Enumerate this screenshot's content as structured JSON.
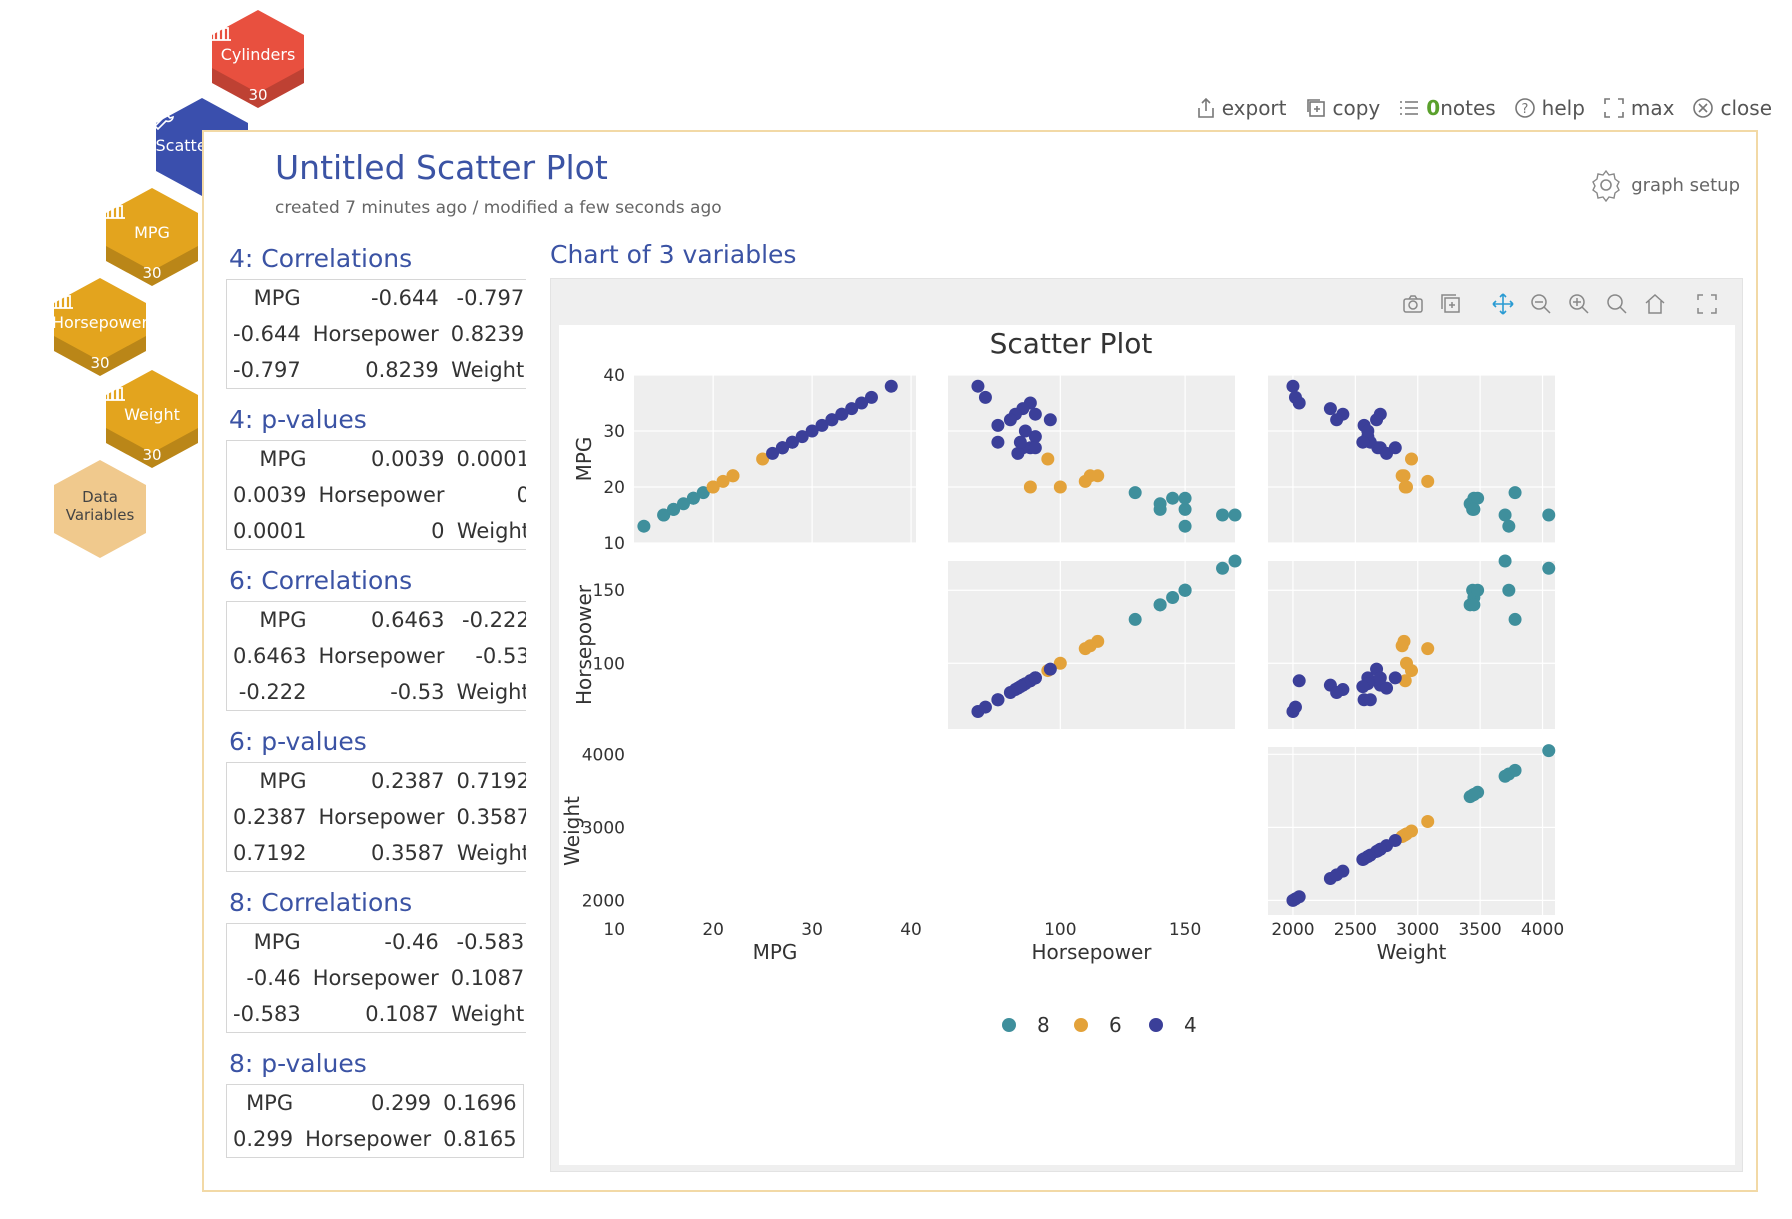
{
  "nav": {
    "hexes": [
      {
        "key": "cylinders",
        "label": "Cylinders",
        "count": "30",
        "color": "#e8503f",
        "icon": "bar-chart-icon"
      },
      {
        "key": "scatter",
        "label": "Scatter Plot",
        "count": "",
        "color": "#3a4fad",
        "icon": "wrench-icon"
      },
      {
        "key": "mpg",
        "label": "MPG",
        "count": "30",
        "color": "#e3a41e",
        "icon": "bar-chart-icon"
      },
      {
        "key": "horsepower",
        "label": "Horsepower",
        "count": "30",
        "color": "#e3a41e",
        "icon": "bar-chart-icon"
      },
      {
        "key": "weight",
        "label": "Weight",
        "count": "30",
        "color": "#e3a41e",
        "icon": "bar-chart-icon"
      },
      {
        "key": "data",
        "label": "Data\nVariables",
        "count": "",
        "color": "#f0c98d",
        "icon": ""
      }
    ]
  },
  "toolbar": {
    "export": "export",
    "copy": "copy",
    "notes_count": "0",
    "notes": "notes",
    "help": "help",
    "max": "max",
    "close": "close"
  },
  "header": {
    "title": "Untitled Scatter Plot",
    "subtitle": "created 7 minutes ago / modified a few seconds ago",
    "graph_setup": "graph setup"
  },
  "stats": [
    {
      "title": "4: Correlations",
      "rows": [
        [
          "MPG",
          "-0.644",
          "-0.797"
        ],
        [
          "-0.644",
          "Horsepower",
          "0.8239"
        ],
        [
          "-0.797",
          "0.8239",
          "Weight"
        ]
      ]
    },
    {
      "title": "4: p-values",
      "rows": [
        [
          "MPG",
          "0.0039",
          "0.0001"
        ],
        [
          "0.0039",
          "Horsepower",
          "0"
        ],
        [
          "0.0001",
          "0",
          "Weight"
        ]
      ]
    },
    {
      "title": "6: Correlations",
      "rows": [
        [
          "MPG",
          "0.6463",
          "-0.222"
        ],
        [
          "0.6463",
          "Horsepower",
          "-0.53"
        ],
        [
          "-0.222",
          "-0.53",
          "Weight"
        ]
      ]
    },
    {
      "title": "6: p-values",
      "rows": [
        [
          "MPG",
          "0.2387",
          "0.7192"
        ],
        [
          "0.2387",
          "Horsepower",
          "0.3587"
        ],
        [
          "0.7192",
          "0.3587",
          "Weight"
        ]
      ]
    },
    {
      "title": "8: Correlations",
      "rows": [
        [
          "MPG",
          "-0.46",
          "-0.583"
        ],
        [
          "-0.46",
          "Horsepower",
          "0.1087"
        ],
        [
          "-0.583",
          "0.1087",
          "Weight"
        ]
      ]
    },
    {
      "title": "8: p-values",
      "rows": [
        [
          "MPG",
          "0.299",
          "0.1696"
        ],
        [
          "0.299",
          "Horsepower",
          "0.8165"
        ]
      ]
    }
  ],
  "chart": {
    "section_title": "Chart of 3 variables",
    "tools": [
      "camera-icon",
      "copy-icon",
      "pan-icon",
      "zoom-out-icon",
      "zoom-in-icon",
      "autoscale-icon",
      "home-icon",
      "fullscreen-icon"
    ]
  },
  "chart_data": {
    "type": "scatter",
    "title": "Scatter Plot",
    "variables": [
      "MPG",
      "Horsepower",
      "Weight"
    ],
    "ranges": {
      "MPG": [
        12,
        40
      ],
      "Horsepower": [
        60,
        170
      ],
      "Weight": [
        1800,
        4150
      ]
    },
    "ticks": {
      "MPG": [
        10,
        20,
        30,
        40
      ],
      "Horsepower": [
        100,
        150
      ],
      "Weight": [
        2000,
        2500,
        3000,
        3500,
        4000
      ]
    },
    "y_ticks": {
      "MPG": [
        10,
        20,
        30,
        40
      ],
      "Horsepower": [
        100,
        150
      ],
      "Weight": [
        2000,
        3000,
        4000
      ]
    },
    "legend": [
      {
        "name": "8",
        "color": "#3f8f9c"
      },
      {
        "name": "6",
        "color": "#e3a23a"
      },
      {
        "name": "4",
        "color": "#3b3f99"
      }
    ],
    "grid": true,
    "series": [
      {
        "name": "8",
        "color": "#3f8f9c",
        "points": [
          {
            "MPG": 13,
            "Horsepower": 150,
            "Weight": 3730
          },
          {
            "MPG": 15,
            "Horsepower": 165,
            "Weight": 4050
          },
          {
            "MPG": 16,
            "Horsepower": 150,
            "Weight": 3440
          },
          {
            "MPG": 17,
            "Horsepower": 140,
            "Weight": 3420
          },
          {
            "MPG": 18,
            "Horsepower": 145,
            "Weight": 3450
          },
          {
            "MPG": 19,
            "Horsepower": 130,
            "Weight": 3780
          },
          {
            "MPG": 18,
            "Horsepower": 150,
            "Weight": 3480
          },
          {
            "MPG": 15,
            "Horsepower": 170,
            "Weight": 3700
          },
          {
            "MPG": 16,
            "Horsepower": 140,
            "Weight": 3450
          }
        ]
      },
      {
        "name": "6",
        "color": "#e3a23a",
        "points": [
          {
            "MPG": 20,
            "Horsepower": 100,
            "Weight": 2910
          },
          {
            "MPG": 21,
            "Horsepower": 110,
            "Weight": 3080
          },
          {
            "MPG": 22,
            "Horsepower": 112,
            "Weight": 2875
          },
          {
            "MPG": 25,
            "Horsepower": 95,
            "Weight": 2950
          },
          {
            "MPG": 22,
            "Horsepower": 115,
            "Weight": 2890
          },
          {
            "MPG": 20,
            "Horsepower": 88,
            "Weight": 2900
          }
        ]
      },
      {
        "name": "4",
        "color": "#3b3f99",
        "points": [
          {
            "MPG": 38,
            "Horsepower": 67,
            "Weight": 2000
          },
          {
            "MPG": 36,
            "Horsepower": 70,
            "Weight": 2020
          },
          {
            "MPG": 35,
            "Horsepower": 88,
            "Weight": 2050
          },
          {
            "MPG": 34,
            "Horsepower": 85,
            "Weight": 2300
          },
          {
            "MPG": 33,
            "Horsepower": 82,
            "Weight": 2400
          },
          {
            "MPG": 32,
            "Horsepower": 80,
            "Weight": 2350
          },
          {
            "MPG": 31,
            "Horsepower": 75,
            "Weight": 2570
          },
          {
            "MPG": 29,
            "Horsepower": 90,
            "Weight": 2600
          },
          {
            "MPG": 28,
            "Horsepower": 75,
            "Weight": 2620
          },
          {
            "MPG": 27,
            "Horsepower": 88,
            "Weight": 2680
          },
          {
            "MPG": 27,
            "Horsepower": 85,
            "Weight": 2700
          },
          {
            "MPG": 26,
            "Horsepower": 83,
            "Weight": 2750
          },
          {
            "MPG": 32,
            "Horsepower": 96,
            "Weight": 2670
          },
          {
            "MPG": 30,
            "Horsepower": 86,
            "Weight": 2600
          },
          {
            "MPG": 28,
            "Horsepower": 84,
            "Weight": 2560
          },
          {
            "MPG": 27,
            "Horsepower": 90,
            "Weight": 2820
          },
          {
            "MPG": 33,
            "Horsepower": 90,
            "Weight": 2700
          }
        ]
      }
    ]
  }
}
